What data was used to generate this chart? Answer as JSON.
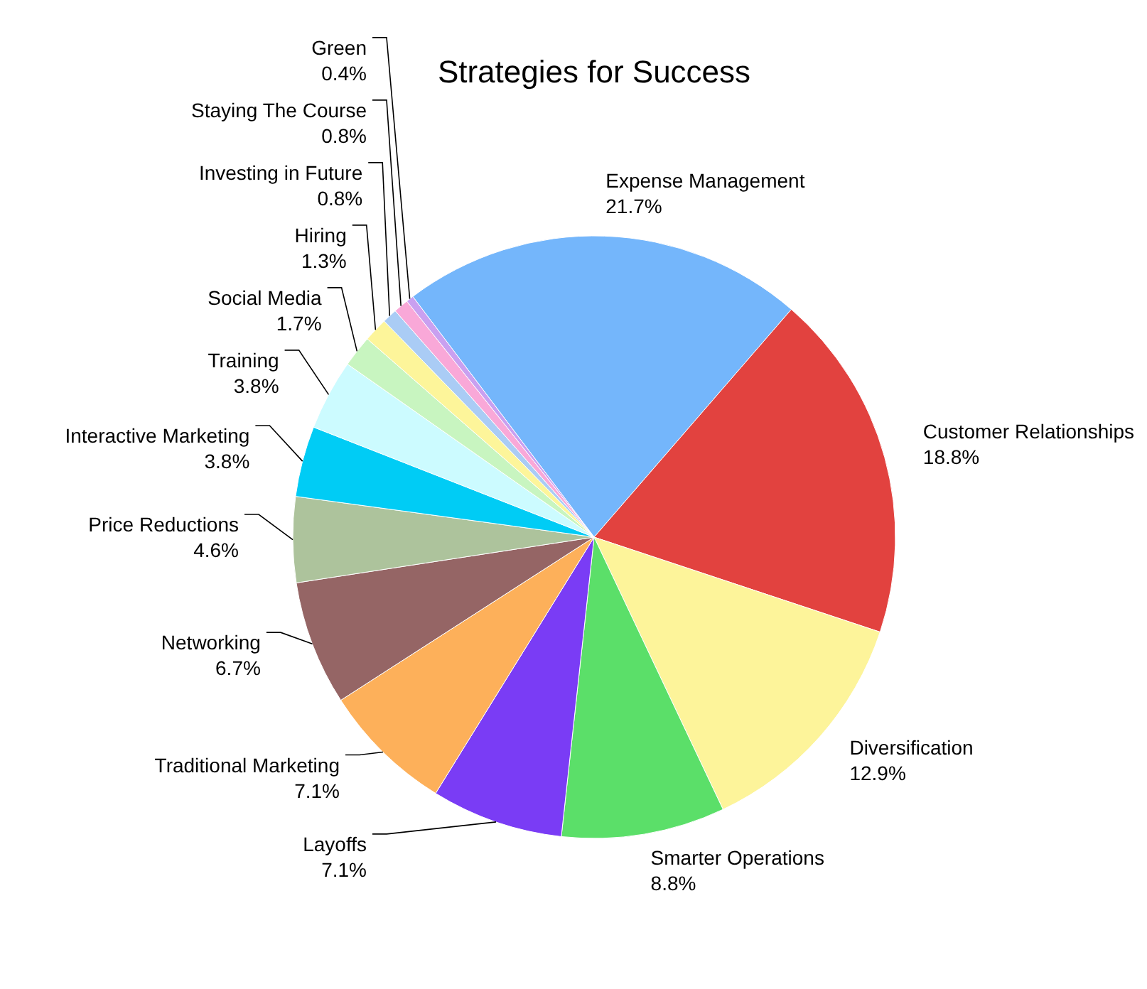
{
  "chart_data": {
    "type": "pie",
    "title": "Strategies for Success",
    "categories": [
      "Expense Management",
      "Customer Relationships",
      "Diversification",
      "Smarter Operations",
      "Layoffs",
      "Traditional Marketing",
      "Networking",
      "Price Reductions",
      "Interactive Marketing",
      "Training",
      "Social Media",
      "Hiring",
      "Investing in Future",
      "Staying The Course",
      "Green"
    ],
    "values": [
      21.7,
      18.8,
      12.9,
      8.8,
      7.1,
      7.1,
      6.7,
      4.6,
      3.8,
      3.8,
      1.7,
      1.3,
      0.8,
      0.8,
      0.4
    ],
    "value_labels": [
      "21.7%",
      "18.8%",
      "12.9%",
      "8.8%",
      "7.1%",
      "7.1%",
      "6.7%",
      "4.6%",
      "3.8%",
      "3.8%",
      "1.7%",
      "1.3%",
      "0.8%",
      "0.8%",
      "0.4%"
    ],
    "colors": [
      "#74b6fb",
      "#e2423f",
      "#fdf49a",
      "#5bdf69",
      "#7a3cf5",
      "#fdb05a",
      "#956565",
      "#adc39c",
      "#00ccf5",
      "#ccfbff",
      "#c8f5c0",
      "#fdf59a",
      "#aaccf5",
      "#f9a8d8",
      "#c9a0f0"
    ]
  }
}
